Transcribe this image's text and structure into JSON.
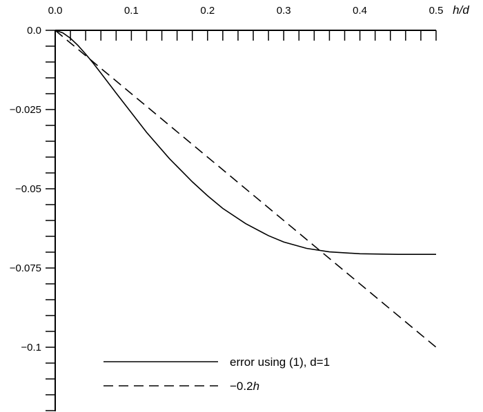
{
  "chart_data": {
    "type": "line",
    "xlabel": "h/d",
    "ylabel": "",
    "xlim": [
      0,
      0.5
    ],
    "ylim": [
      -0.12,
      0
    ],
    "x_ticks": [
      "0.0",
      "0.1",
      "0.2",
      "0.3",
      "0.4",
      "0.5"
    ],
    "y_ticks": [
      "0.0",
      "-0.025",
      "-0.05",
      "-0.075",
      "-0.1"
    ],
    "x_tick_values": [
      0,
      0.1,
      0.2,
      0.3,
      0.4,
      0.5
    ],
    "y_tick_values": [
      0,
      -0.025,
      -0.05,
      -0.075,
      -0.1
    ],
    "grid": false,
    "legend_position": "bottom-center",
    "series": [
      {
        "name": "error using (1), d=1",
        "style": "solid",
        "color": "#000000",
        "x": [
          0,
          0.01,
          0.02,
          0.03,
          0.04,
          0.05,
          0.06,
          0.08,
          0.1,
          0.12,
          0.15,
          0.18,
          0.2,
          0.22,
          0.25,
          0.28,
          0.3,
          0.33,
          0.36,
          0.4,
          0.45,
          0.5
        ],
        "y": [
          0,
          -0.0008,
          -0.0025,
          -0.0048,
          -0.0075,
          -0.0104,
          -0.0135,
          -0.0198,
          -0.026,
          -0.0322,
          -0.0405,
          -0.0478,
          -0.0522,
          -0.0562,
          -0.061,
          -0.0648,
          -0.0668,
          -0.0688,
          -0.0699,
          -0.0705,
          -0.0707,
          -0.0707
        ]
      },
      {
        "name": "−0.2h",
        "style": "dashed",
        "color": "#000000",
        "x": [
          0,
          0.5
        ],
        "y": [
          0,
          -0.1
        ]
      }
    ],
    "legend": [
      {
        "label": "error using (1), d=1",
        "style": "solid"
      },
      {
        "label_prefix": "−0.2",
        "label_var": "h",
        "style": "dashed"
      }
    ]
  }
}
